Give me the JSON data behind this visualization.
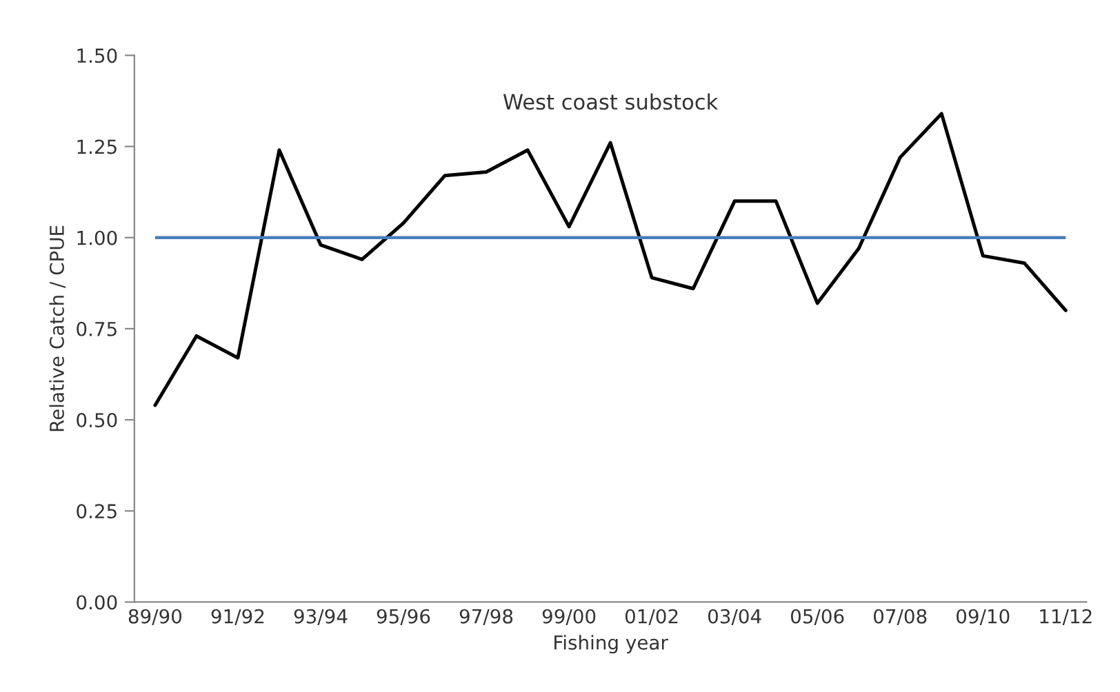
{
  "chart_data": {
    "type": "line",
    "title": "West coast substock",
    "xlabel": "Fishing year",
    "ylabel": "Relative Catch / CPUE",
    "categories": [
      "89/90",
      null,
      "91/92",
      null,
      "93/94",
      null,
      "95/96",
      null,
      "97/98",
      null,
      "99/00",
      null,
      "01/02",
      null,
      "03/04",
      null,
      "05/06",
      null,
      "07/08",
      null,
      "09/10",
      null,
      "11/12"
    ],
    "series": [
      {
        "color": "#000000",
        "values": [
          0.54,
          0.73,
          0.67,
          1.24,
          0.98,
          0.94,
          1.04,
          1.17,
          1.18,
          1.24,
          1.03,
          1.26,
          0.89,
          0.86,
          1.1,
          1.1,
          0.82,
          0.97,
          1.22,
          1.34,
          0.95,
          0.93,
          0.8
        ]
      }
    ],
    "ylim": [
      0,
      1.5
    ],
    "yticks": [
      {
        "value": 0,
        "label": "0.00"
      },
      {
        "value": 0.25,
        "label": "0.25"
      },
      {
        "value": 0.5,
        "label": "0.50"
      },
      {
        "value": 0.75,
        "label": "0.75"
      },
      {
        "value": 1.0,
        "label": "1.00"
      },
      {
        "value": 1.25,
        "label": "1.25"
      },
      {
        "value": 1.5,
        "label": "1.50"
      }
    ],
    "ref_lines": [
      {
        "axis": "y",
        "value": 1.0,
        "color": "#4a7ebb"
      }
    ],
    "grid": false,
    "marker": "none",
    "line_style": "solid"
  }
}
